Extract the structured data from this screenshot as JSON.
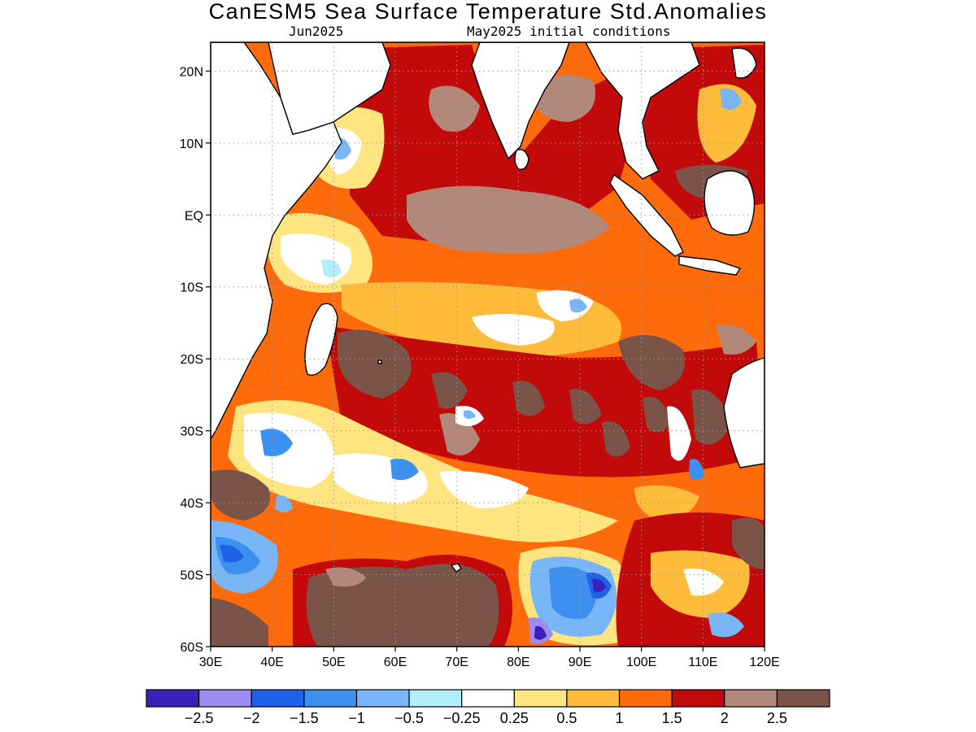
{
  "title": "CanESM5 Sea Surface Temperature Std.Anomalies",
  "subtitle_left": "Jun2025",
  "subtitle_right": "May2025 initial conditions",
  "map": {
    "lon_range": [
      30,
      120
    ],
    "lat_range": [
      -60,
      24
    ],
    "lat_ticks": [
      "20N",
      "10N",
      "EQ",
      "10S",
      "20S",
      "30S",
      "40S",
      "50S",
      "60S"
    ],
    "lon_ticks": [
      "30E",
      "40E",
      "50E",
      "60E",
      "70E",
      "80E",
      "90E",
      "100E",
      "110E",
      "120E"
    ],
    "grid": "dotted",
    "region": "Indian Ocean"
  },
  "colorbar": {
    "colors": [
      "#3a1fb8",
      "#9d8cf2",
      "#1f62e8",
      "#3c90f0",
      "#78b6f7",
      "#b2eef9",
      "#ffffff",
      "#ffe580",
      "#ffbb3a",
      "#ff6a0a",
      "#c30a0a",
      "#b2887a",
      "#7a5448"
    ],
    "labels": [
      "−2.5",
      "−2",
      "−1.5",
      "−1",
      "−0.5",
      "−0.25",
      "0.25",
      "0.5",
      "1",
      "1.5",
      "2",
      "2.5"
    ]
  }
}
